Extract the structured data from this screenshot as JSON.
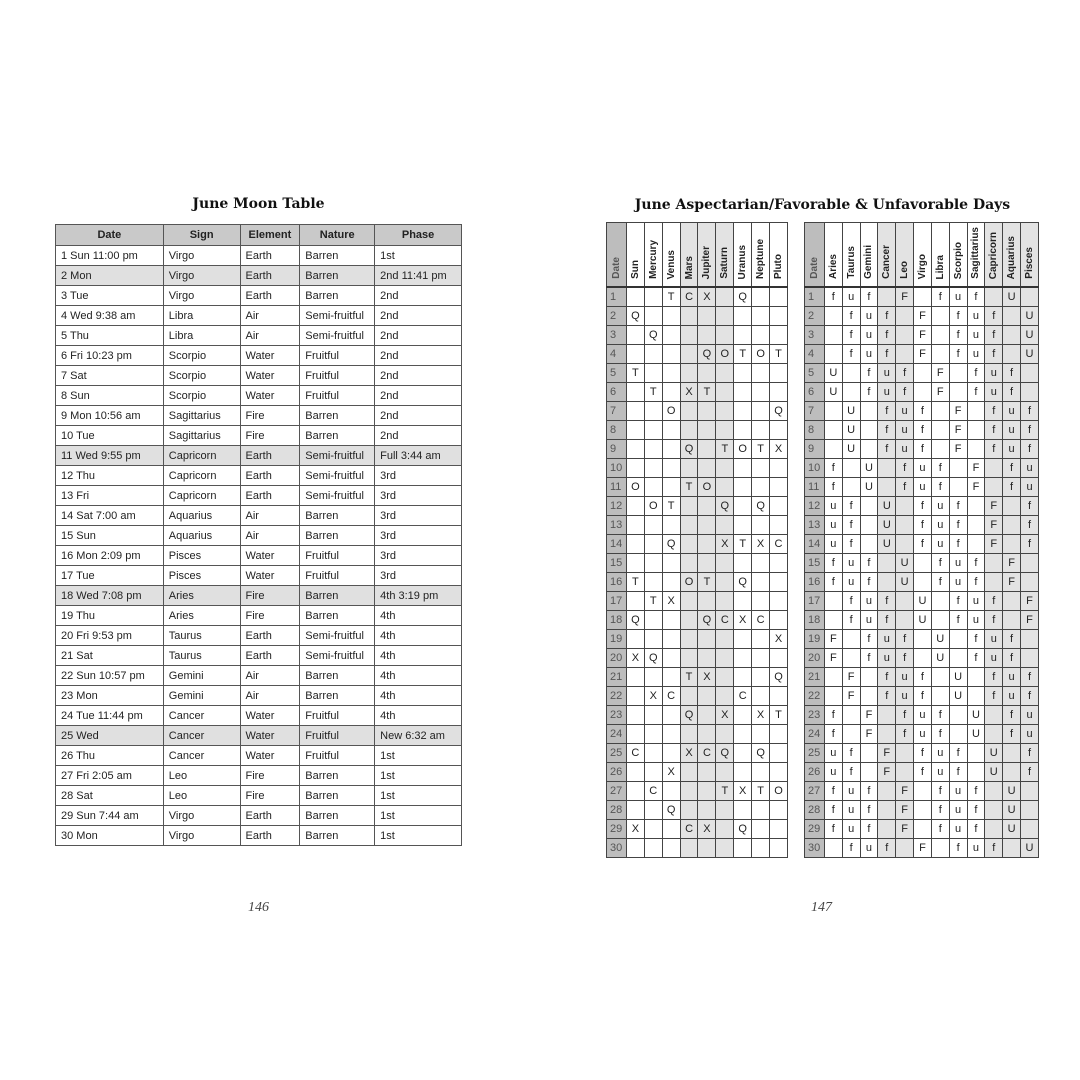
{
  "left_page": {
    "title": "June Moon Table",
    "page_number": "146",
    "columns": [
      "Date",
      "Sign",
      "Element",
      "Nature",
      "Phase"
    ],
    "rows": [
      [
        "1 Sun 11:00 pm",
        "Virgo",
        "Earth",
        "Barren",
        "1st"
      ],
      [
        "2 Mon",
        "Virgo",
        "Earth",
        "Barren",
        "2nd 11:41 pm"
      ],
      [
        "3 Tue",
        "Virgo",
        "Earth",
        "Barren",
        "2nd"
      ],
      [
        "4 Wed 9:38 am",
        "Libra",
        "Air",
        "Semi-fruitful",
        "2nd"
      ],
      [
        "5 Thu",
        "Libra",
        "Air",
        "Semi-fruitful",
        "2nd"
      ],
      [
        "6 Fri 10:23 pm",
        "Scorpio",
        "Water",
        "Fruitful",
        "2nd"
      ],
      [
        "7 Sat",
        "Scorpio",
        "Water",
        "Fruitful",
        "2nd"
      ],
      [
        "8 Sun",
        "Scorpio",
        "Water",
        "Fruitful",
        "2nd"
      ],
      [
        "9 Mon 10:56 am",
        "Sagittarius",
        "Fire",
        "Barren",
        "2nd"
      ],
      [
        "10 Tue",
        "Sagittarius",
        "Fire",
        "Barren",
        "2nd"
      ],
      [
        "11 Wed 9:55 pm",
        "Capricorn",
        "Earth",
        "Semi-fruitful",
        "Full 3:44 am"
      ],
      [
        "12 Thu",
        "Capricorn",
        "Earth",
        "Semi-fruitful",
        "3rd"
      ],
      [
        "13 Fri",
        "Capricorn",
        "Earth",
        "Semi-fruitful",
        "3rd"
      ],
      [
        "14 Sat 7:00 am",
        "Aquarius",
        "Air",
        "Barren",
        "3rd"
      ],
      [
        "15 Sun",
        "Aquarius",
        "Air",
        "Barren",
        "3rd"
      ],
      [
        "16 Mon 2:09 pm",
        "Pisces",
        "Water",
        "Fruitful",
        "3rd"
      ],
      [
        "17 Tue",
        "Pisces",
        "Water",
        "Fruitful",
        "3rd"
      ],
      [
        "18 Wed 7:08 pm",
        "Aries",
        "Fire",
        "Barren",
        "4th 3:19 pm"
      ],
      [
        "19 Thu",
        "Aries",
        "Fire",
        "Barren",
        "4th"
      ],
      [
        "20 Fri 9:53 pm",
        "Taurus",
        "Earth",
        "Semi-fruitful",
        "4th"
      ],
      [
        "21 Sat",
        "Taurus",
        "Earth",
        "Semi-fruitful",
        "4th"
      ],
      [
        "22 Sun 10:57 pm",
        "Gemini",
        "Air",
        "Barren",
        "4th"
      ],
      [
        "23 Mon",
        "Gemini",
        "Air",
        "Barren",
        "4th"
      ],
      [
        "24 Tue 11:44 pm",
        "Cancer",
        "Water",
        "Fruitful",
        "4th"
      ],
      [
        "25 Wed",
        "Cancer",
        "Water",
        "Fruitful",
        "New 6:32 am"
      ],
      [
        "26 Thu",
        "Cancer",
        "Water",
        "Fruitful",
        "1st"
      ],
      [
        "27 Fri 2:05 am",
        "Leo",
        "Fire",
        "Barren",
        "1st"
      ],
      [
        "28 Sat",
        "Leo",
        "Fire",
        "Barren",
        "1st"
      ],
      [
        "29 Sun 7:44 am",
        "Virgo",
        "Earth",
        "Barren",
        "1st"
      ],
      [
        "30 Mon",
        "Virgo",
        "Earth",
        "Barren",
        "1st"
      ]
    ],
    "highlighted_rows": [
      2,
      11,
      18,
      25
    ]
  },
  "right_page": {
    "title": "June Aspectarian/Favorable & Unfavorable Days",
    "page_number": "147",
    "aspect_grid": {
      "columns": [
        "Date",
        "Sun",
        "Mercury",
        "Venus",
        "Mars",
        "Jupiter",
        "Saturn",
        "Uranus",
        "Neptune",
        "Pluto"
      ],
      "shaded_columns": [
        "Mars",
        "Jupiter",
        "Saturn"
      ],
      "rows": [
        [
          "",
          "",
          "T",
          "C",
          "X",
          "",
          "Q",
          "",
          ""
        ],
        [
          "Q",
          "",
          "",
          "",
          "",
          "",
          "",
          "",
          ""
        ],
        [
          "",
          "Q",
          "",
          "",
          "",
          "",
          "",
          "",
          ""
        ],
        [
          "",
          "",
          "",
          "",
          "Q",
          "O",
          "T",
          "O",
          "T"
        ],
        [
          "T",
          "",
          "",
          "",
          "",
          "",
          "",
          "",
          ""
        ],
        [
          "",
          "T",
          "",
          "X",
          "T",
          "",
          "",
          "",
          ""
        ],
        [
          "",
          "",
          "O",
          "",
          "",
          "",
          "",
          "",
          "Q"
        ],
        [
          "",
          "",
          "",
          "",
          "",
          "",
          "",
          "",
          ""
        ],
        [
          "",
          "",
          "",
          "Q",
          "",
          "T",
          "O",
          "T",
          "X"
        ],
        [
          "",
          "",
          "",
          "",
          "",
          "",
          "",
          "",
          ""
        ],
        [
          "O",
          "",
          "",
          "T",
          "O",
          "",
          "",
          "",
          ""
        ],
        [
          "",
          "O",
          "T",
          "",
          "",
          "Q",
          "",
          "Q",
          ""
        ],
        [
          "",
          "",
          "",
          "",
          "",
          "",
          "",
          "",
          ""
        ],
        [
          "",
          "",
          "Q",
          "",
          "",
          "X",
          "T",
          "X",
          "C"
        ],
        [
          "",
          "",
          "",
          "",
          "",
          "",
          "",
          "",
          ""
        ],
        [
          "T",
          "",
          "",
          "O",
          "T",
          "",
          "Q",
          "",
          ""
        ],
        [
          "",
          "T",
          "X",
          "",
          "",
          "",
          "",
          "",
          ""
        ],
        [
          "Q",
          "",
          "",
          "",
          "Q",
          "C",
          "X",
          "C",
          ""
        ],
        [
          "",
          "",
          "",
          "",
          "",
          "",
          "",
          "",
          "X"
        ],
        [
          "X",
          "Q",
          "",
          "",
          "",
          "",
          "",
          "",
          ""
        ],
        [
          "",
          "",
          "",
          "T",
          "X",
          "",
          "",
          "",
          "Q"
        ],
        [
          "",
          "X",
          "C",
          "",
          "",
          "",
          "C",
          "",
          ""
        ],
        [
          "",
          "",
          "",
          "Q",
          "",
          "X",
          "",
          "X",
          "T"
        ],
        [
          "",
          "",
          "",
          "",
          "",
          "",
          "",
          "",
          ""
        ],
        [
          "C",
          "",
          "",
          "X",
          "C",
          "Q",
          "",
          "Q",
          ""
        ],
        [
          "",
          "",
          "X",
          "",
          "",
          "",
          "",
          "",
          ""
        ],
        [
          "",
          "C",
          "",
          "",
          "",
          "T",
          "X",
          "T",
          "O"
        ],
        [
          "",
          "",
          "Q",
          "",
          "",
          "",
          "",
          "",
          ""
        ],
        [
          "X",
          "",
          "",
          "C",
          "X",
          "",
          "Q",
          "",
          ""
        ],
        [
          "",
          "",
          "",
          "",
          "",
          "",
          "",
          "",
          ""
        ]
      ]
    },
    "days_grid": {
      "columns": [
        "Date",
        "Aries",
        "Taurus",
        "Gemini",
        "Cancer",
        "Leo",
        "Virgo",
        "Libra",
        "Scorpio",
        "Sagittarius",
        "Capricorn",
        "Aquarius",
        "Pisces"
      ],
      "shaded_columns": [
        "Cancer",
        "Leo",
        "Capricorn",
        "Aquarius",
        "Pisces"
      ],
      "rows": [
        [
          "f",
          "u",
          "f",
          "",
          "F",
          "",
          "f",
          "u",
          "f",
          "",
          "U",
          ""
        ],
        [
          "",
          "f",
          "u",
          "f",
          "",
          "F",
          "",
          "f",
          "u",
          "f",
          "",
          "U"
        ],
        [
          "",
          "f",
          "u",
          "f",
          "",
          "F",
          "",
          "f",
          "u",
          "f",
          "",
          "U"
        ],
        [
          "",
          "f",
          "u",
          "f",
          "",
          "F",
          "",
          "f",
          "u",
          "f",
          "",
          "U"
        ],
        [
          "U",
          "",
          "f",
          "u",
          "f",
          "",
          "F",
          "",
          "f",
          "u",
          "f",
          ""
        ],
        [
          "U",
          "",
          "f",
          "u",
          "f",
          "",
          "F",
          "",
          "f",
          "u",
          "f",
          ""
        ],
        [
          "",
          "U",
          "",
          "f",
          "u",
          "f",
          "",
          "F",
          "",
          "f",
          "u",
          "f"
        ],
        [
          "",
          "U",
          "",
          "f",
          "u",
          "f",
          "",
          "F",
          "",
          "f",
          "u",
          "f"
        ],
        [
          "",
          "U",
          "",
          "f",
          "u",
          "f",
          "",
          "F",
          "",
          "f",
          "u",
          "f"
        ],
        [
          "f",
          "",
          "U",
          "",
          "f",
          "u",
          "f",
          "",
          "F",
          "",
          "f",
          "u"
        ],
        [
          "f",
          "",
          "U",
          "",
          "f",
          "u",
          "f",
          "",
          "F",
          "",
          "f",
          "u"
        ],
        [
          "u",
          "f",
          "",
          "U",
          "",
          "f",
          "u",
          "f",
          "",
          "F",
          "",
          "f"
        ],
        [
          "u",
          "f",
          "",
          "U",
          "",
          "f",
          "u",
          "f",
          "",
          "F",
          "",
          "f"
        ],
        [
          "u",
          "f",
          "",
          "U",
          "",
          "f",
          "u",
          "f",
          "",
          "F",
          "",
          "f"
        ],
        [
          "f",
          "u",
          "f",
          "",
          "U",
          "",
          "f",
          "u",
          "f",
          "",
          "F",
          ""
        ],
        [
          "f",
          "u",
          "f",
          "",
          "U",
          "",
          "f",
          "u",
          "f",
          "",
          "F",
          ""
        ],
        [
          "",
          "f",
          "u",
          "f",
          "",
          "U",
          "",
          "f",
          "u",
          "f",
          "",
          "F"
        ],
        [
          "",
          "f",
          "u",
          "f",
          "",
          "U",
          "",
          "f",
          "u",
          "f",
          "",
          "F"
        ],
        [
          "F",
          "",
          "f",
          "u",
          "f",
          "",
          "U",
          "",
          "f",
          "u",
          "f",
          ""
        ],
        [
          "F",
          "",
          "f",
          "u",
          "f",
          "",
          "U",
          "",
          "f",
          "u",
          "f",
          ""
        ],
        [
          "",
          "F",
          "",
          "f",
          "u",
          "f",
          "",
          "U",
          "",
          "f",
          "u",
          "f"
        ],
        [
          "",
          "F",
          "",
          "f",
          "u",
          "f",
          "",
          "U",
          "",
          "f",
          "u",
          "f"
        ],
        [
          "f",
          "",
          "F",
          "",
          "f",
          "u",
          "f",
          "",
          "U",
          "",
          "f",
          "u"
        ],
        [
          "f",
          "",
          "F",
          "",
          "f",
          "u",
          "f",
          "",
          "U",
          "",
          "f",
          "u"
        ],
        [
          "u",
          "f",
          "",
          "F",
          "",
          "f",
          "u",
          "f",
          "",
          "U",
          "",
          "f"
        ],
        [
          "u",
          "f",
          "",
          "F",
          "",
          "f",
          "u",
          "f",
          "",
          "U",
          "",
          "f"
        ],
        [
          "f",
          "u",
          "f",
          "",
          "F",
          "",
          "f",
          "u",
          "f",
          "",
          "U",
          ""
        ],
        [
          "f",
          "u",
          "f",
          "",
          "F",
          "",
          "f",
          "u",
          "f",
          "",
          "U",
          ""
        ],
        [
          "f",
          "u",
          "f",
          "",
          "F",
          "",
          "f",
          "u",
          "f",
          "",
          "U",
          ""
        ],
        [
          "",
          "f",
          "u",
          "f",
          "",
          "F",
          "",
          "f",
          "u",
          "f",
          "",
          "U"
        ]
      ]
    }
  }
}
